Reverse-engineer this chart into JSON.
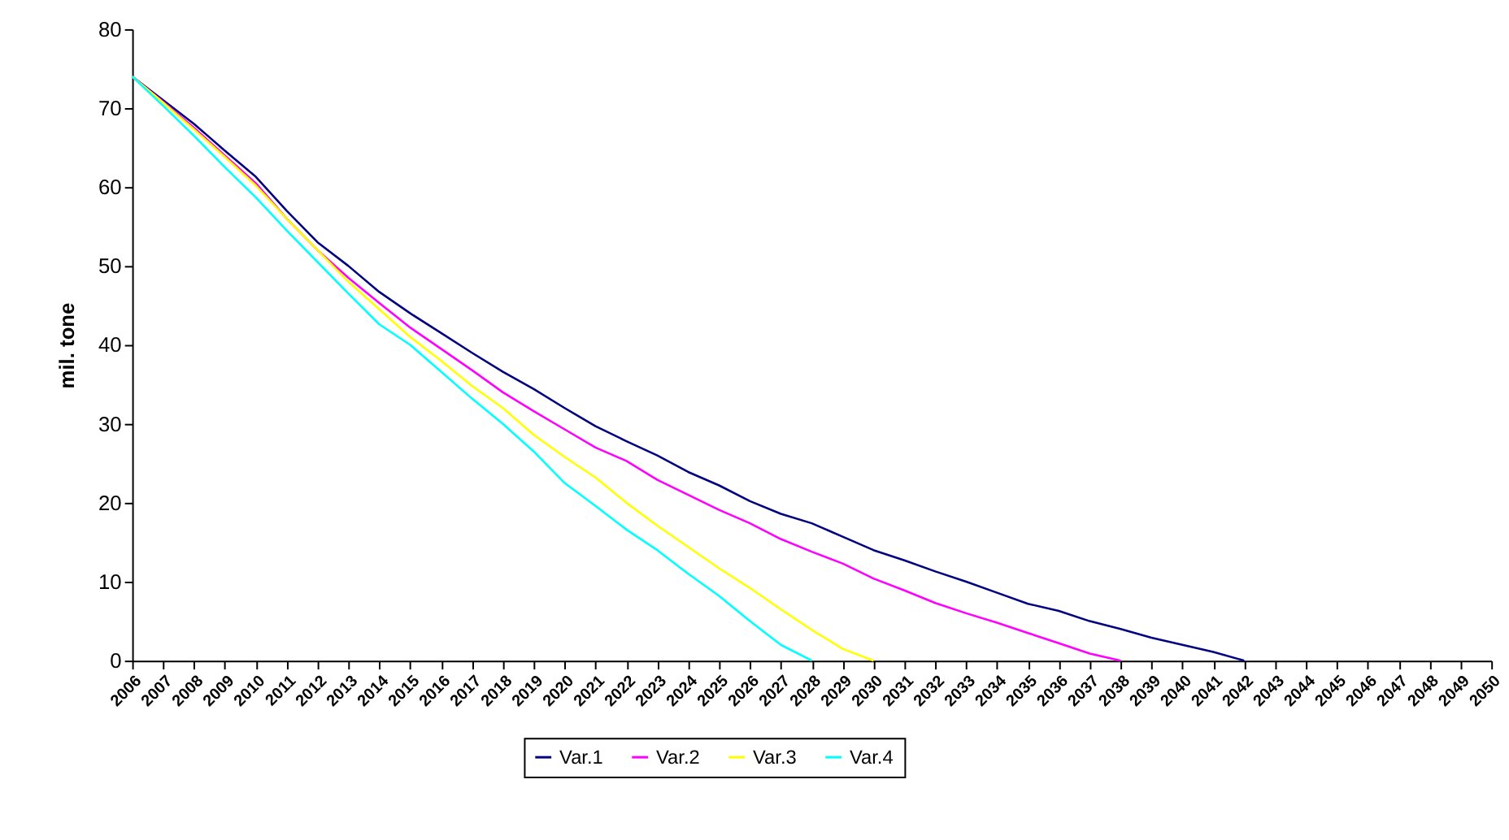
{
  "chart_data": {
    "type": "line",
    "ylabel": "mil. tone",
    "categories": [
      "2006",
      "2007",
      "2008",
      "2009",
      "2010",
      "2011",
      "2012",
      "2013",
      "2014",
      "2015",
      "2016",
      "2017",
      "2018",
      "2019",
      "2020",
      "2021",
      "2022",
      "2023",
      "2024",
      "2025",
      "2026",
      "2027",
      "2028",
      "2029",
      "2030",
      "2031",
      "2032",
      "2033",
      "2034",
      "2035",
      "2036",
      "2037",
      "2038",
      "2039",
      "2040",
      "2041",
      "2042",
      "2043",
      "2044",
      "2045",
      "2046",
      "2047",
      "2048",
      "2049",
      "2050"
    ],
    "series": [
      {
        "name": "Var.1",
        "color": "#000080",
        "values": [
          74,
          71,
          68,
          64.6,
          61.3,
          57,
          53,
          50,
          46.7,
          44,
          41.5,
          39,
          36.6,
          34.4,
          32,
          29.7,
          27.8,
          26,
          23.9,
          22.2,
          20.2,
          18.6,
          17.4,
          15.7,
          14,
          12.7,
          11.3,
          10,
          8.6,
          7.2,
          6.3,
          5,
          4,
          2.9,
          2,
          1.1,
          0,
          null,
          null,
          null,
          null,
          null,
          null,
          null,
          null
        ]
      },
      {
        "name": "Var.2",
        "color": "#ff00ff",
        "values": [
          74,
          70.8,
          67.5,
          64,
          60.5,
          56,
          52,
          48.5,
          45.3,
          42.2,
          39.5,
          36.8,
          34,
          31.6,
          29.3,
          27,
          25.3,
          22.9,
          21,
          19.1,
          17.4,
          15.4,
          13.8,
          12.3,
          10.4,
          8.9,
          7.3,
          6,
          4.8,
          3.5,
          2.2,
          0.9,
          0,
          null,
          null,
          null,
          null,
          null,
          null,
          null,
          null,
          null,
          null,
          null,
          null
        ]
      },
      {
        "name": "Var.3",
        "color": "#ffff00",
        "values": [
          74,
          70.7,
          67.3,
          63.8,
          60.2,
          56,
          52,
          48,
          44.5,
          41,
          38,
          34.8,
          32,
          28.6,
          25.8,
          23.2,
          20,
          17.1,
          14.4,
          11.7,
          9.2,
          6.5,
          3.9,
          1.5,
          0,
          null,
          null,
          null,
          null,
          null,
          null,
          null,
          null,
          null,
          null,
          null,
          null,
          null,
          null,
          null,
          null,
          null,
          null,
          null,
          null
        ]
      },
      {
        "name": "Var.4",
        "color": "#00ffff",
        "values": [
          74,
          70.3,
          66.5,
          62.5,
          58.7,
          54.5,
          50.5,
          46.5,
          42.6,
          40,
          36.6,
          33.2,
          30,
          26.5,
          22.5,
          19.6,
          16.6,
          14,
          11,
          8.2,
          5,
          2,
          0,
          null,
          null,
          null,
          null,
          null,
          null,
          null,
          null,
          null,
          null,
          null,
          null,
          null,
          null,
          null,
          null,
          null,
          null,
          null,
          null,
          null,
          null
        ]
      }
    ],
    "ylim": [
      0,
      80
    ],
    "yticks": [
      0,
      10,
      20,
      30,
      40,
      50,
      60,
      70,
      80
    ],
    "grid": false,
    "legend": "bottom",
    "marker": "none",
    "line_style": "solid"
  }
}
